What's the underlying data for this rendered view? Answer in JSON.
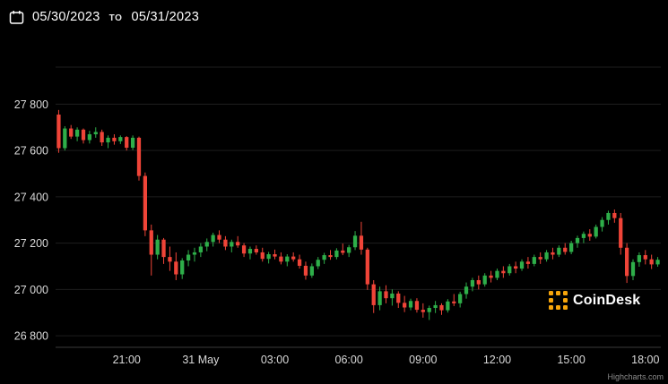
{
  "header": {
    "date_from": "05/30/2023",
    "separator": "TO",
    "date_to": "05/31/2023"
  },
  "watermark": {
    "brand": "CoinDesk"
  },
  "credit": {
    "label": "Highcharts.com"
  },
  "colors": {
    "background": "#000000",
    "up": "#2eae49",
    "down": "#ef4438",
    "axis_label": "#d9d9d9",
    "grid": "#1e1e1e",
    "axis_line": "#3a3a3a",
    "accent_orange": "#f6a50b"
  },
  "chart_data": {
    "type": "candlestick",
    "title": "",
    "xlabel": "",
    "ylabel": "",
    "legend": "none",
    "grid": "horizontal-only",
    "interval_minutes": 15,
    "start_time_label": "05/30/2023 18:15",
    "ylim": [
      26750,
      27960
    ],
    "yticks": [
      {
        "value": 27800,
        "label": "27 800"
      },
      {
        "value": 27600,
        "label": "27 600"
      },
      {
        "value": 27400,
        "label": "27 400"
      },
      {
        "value": 27200,
        "label": "27 200"
      },
      {
        "value": 27000,
        "label": "27 000"
      },
      {
        "value": 26800,
        "label": "26 800"
      }
    ],
    "xticks": [
      {
        "index": 11,
        "label": "21:00"
      },
      {
        "index": 23,
        "label": "31 May"
      },
      {
        "index": 35,
        "label": "03:00"
      },
      {
        "index": 47,
        "label": "06:00"
      },
      {
        "index": 59,
        "label": "09:00"
      },
      {
        "index": 71,
        "label": "12:00"
      },
      {
        "index": 83,
        "label": "15:00"
      },
      {
        "index": 95,
        "label": "18:00"
      }
    ],
    "candles": [
      [
        27755,
        27775,
        27590,
        27610
      ],
      [
        27610,
        27705,
        27600,
        27695
      ],
      [
        27695,
        27710,
        27650,
        27660
      ],
      [
        27660,
        27700,
        27640,
        27690
      ],
      [
        27690,
        27695,
        27630,
        27645
      ],
      [
        27645,
        27685,
        27630,
        27670
      ],
      [
        27670,
        27700,
        27655,
        27680
      ],
      [
        27680,
        27690,
        27620,
        27635
      ],
      [
        27635,
        27665,
        27610,
        27655
      ],
      [
        27655,
        27670,
        27625,
        27640
      ],
      [
        27640,
        27665,
        27628,
        27658
      ],
      [
        27658,
        27662,
        27600,
        27612
      ],
      [
        27612,
        27665,
        27602,
        27655
      ],
      [
        27655,
        27660,
        27470,
        27490
      ],
      [
        27490,
        27505,
        27230,
        27255
      ],
      [
        27255,
        27280,
        27060,
        27150
      ],
      [
        27150,
        27235,
        27130,
        27215
      ],
      [
        27215,
        27222,
        27110,
        27140
      ],
      [
        27140,
        27185,
        27080,
        27120
      ],
      [
        27120,
        27160,
        27040,
        27065
      ],
      [
        27065,
        27135,
        27045,
        27125
      ],
      [
        27125,
        27170,
        27100,
        27150
      ],
      [
        27150,
        27180,
        27120,
        27160
      ],
      [
        27160,
        27200,
        27140,
        27185
      ],
      [
        27185,
        27220,
        27165,
        27205
      ],
      [
        27205,
        27245,
        27185,
        27235
      ],
      [
        27235,
        27255,
        27200,
        27215
      ],
      [
        27215,
        27230,
        27170,
        27185
      ],
      [
        27185,
        27215,
        27160,
        27205
      ],
      [
        27205,
        27230,
        27180,
        27190
      ],
      [
        27190,
        27200,
        27140,
        27155
      ],
      [
        27155,
        27185,
        27130,
        27175
      ],
      [
        27175,
        27190,
        27150,
        27160
      ],
      [
        27160,
        27180,
        27120,
        27132
      ],
      [
        27132,
        27162,
        27112,
        27152
      ],
      [
        27152,
        27172,
        27130,
        27142
      ],
      [
        27142,
        27160,
        27108,
        27120
      ],
      [
        27120,
        27152,
        27100,
        27142
      ],
      [
        27142,
        27160,
        27120,
        27130
      ],
      [
        27130,
        27150,
        27090,
        27102
      ],
      [
        27102,
        27120,
        27042,
        27060
      ],
      [
        27060,
        27112,
        27050,
        27100
      ],
      [
        27100,
        27140,
        27088,
        27128
      ],
      [
        27128,
        27158,
        27110,
        27148
      ],
      [
        27148,
        27170,
        27128,
        27140
      ],
      [
        27140,
        27178,
        27130,
        27168
      ],
      [
        27168,
        27198,
        27148,
        27158
      ],
      [
        27158,
        27192,
        27140,
        27182
      ],
      [
        27182,
        27252,
        27170,
        27232
      ],
      [
        27232,
        27292,
        27150,
        27172
      ],
      [
        27172,
        27180,
        26998,
        27022
      ],
      [
        27022,
        27040,
        26898,
        26932
      ],
      [
        26932,
        27012,
        26910,
        26992
      ],
      [
        26992,
        27018,
        26940,
        26962
      ],
      [
        26962,
        27000,
        26930,
        26982
      ],
      [
        26982,
        26992,
        26920,
        26942
      ],
      [
        26942,
        26972,
        26902,
        26922
      ],
      [
        26922,
        26960,
        26910,
        26950
      ],
      [
        26950,
        26962,
        26900,
        26912
      ],
      [
        26912,
        26940,
        26878,
        26902
      ],
      [
        26902,
        26930,
        26868,
        26920
      ],
      [
        26920,
        26950,
        26898,
        26932
      ],
      [
        26932,
        26940,
        26890,
        26910
      ],
      [
        26910,
        26958,
        26900,
        26948
      ],
      [
        26948,
        26980,
        26928,
        26940
      ],
      [
        26940,
        26990,
        26922,
        26980
      ],
      [
        26980,
        27030,
        26960,
        27012
      ],
      [
        27012,
        27050,
        26992,
        27040
      ],
      [
        27040,
        27060,
        27000,
        27022
      ],
      [
        27022,
        27070,
        27012,
        27060
      ],
      [
        27060,
        27080,
        27030,
        27050
      ],
      [
        27050,
        27090,
        27040,
        27080
      ],
      [
        27080,
        27100,
        27050,
        27070
      ],
      [
        27070,
        27110,
        27060,
        27100
      ],
      [
        27100,
        27120,
        27070,
        27090
      ],
      [
        27090,
        27130,
        27080,
        27120
      ],
      [
        27120,
        27140,
        27090,
        27110
      ],
      [
        27110,
        27150,
        27100,
        27140
      ],
      [
        27140,
        27160,
        27110,
        27130
      ],
      [
        27130,
        27170,
        27120,
        27160
      ],
      [
        27160,
        27180,
        27130,
        27150
      ],
      [
        27150,
        27190,
        27140,
        27180
      ],
      [
        27180,
        27200,
        27150,
        27162
      ],
      [
        27162,
        27210,
        27152,
        27200
      ],
      [
        27200,
        27232,
        27180,
        27222
      ],
      [
        27222,
        27250,
        27200,
        27240
      ],
      [
        27240,
        27260,
        27210,
        27228
      ],
      [
        27228,
        27280,
        27220,
        27270
      ],
      [
        27270,
        27312,
        27250,
        27300
      ],
      [
        27300,
        27340,
        27280,
        27330
      ],
      [
        27330,
        27345,
        27288,
        27308
      ],
      [
        27308,
        27330,
        27150,
        27180
      ],
      [
        27180,
        27200,
        27028,
        27058
      ],
      [
        27058,
        27130,
        27040,
        27118
      ],
      [
        27118,
        27160,
        27098,
        27148
      ],
      [
        27148,
        27170,
        27108,
        27130
      ],
      [
        27130,
        27150,
        27088,
        27108
      ],
      [
        27108,
        27140,
        27098,
        27128
      ]
    ]
  }
}
